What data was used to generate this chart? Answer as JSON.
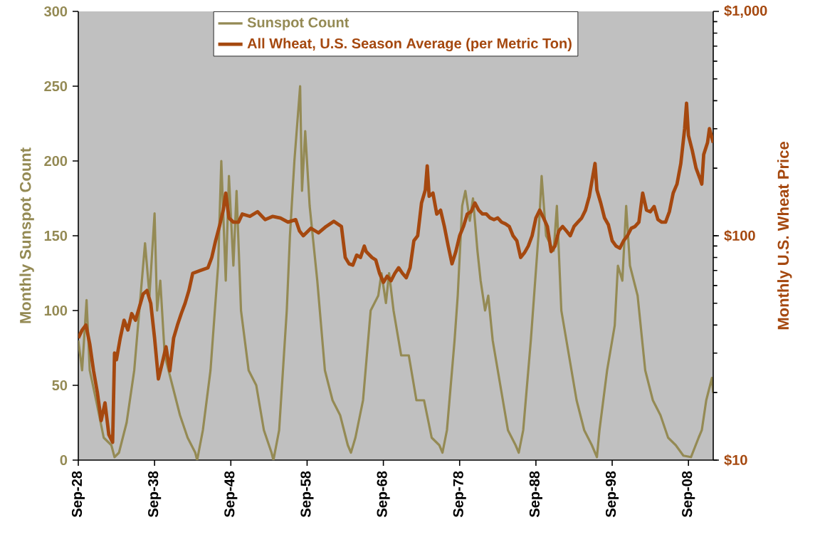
{
  "chart_data": {
    "type": "line",
    "ylabel": "Monthly Sunspot Count",
    "y2label": "Monthly U.S. Wheat Price",
    "xlim": [
      "1928-09",
      "2011-12"
    ],
    "xticks": [
      {
        "value": "1928-09",
        "label": "Sep-28"
      },
      {
        "value": "1938-09",
        "label": "Sep-38"
      },
      {
        "value": "1948-09",
        "label": "Sep-48"
      },
      {
        "value": "1958-09",
        "label": "Sep-58"
      },
      {
        "value": "1968-09",
        "label": "Sep-68"
      },
      {
        "value": "1978-09",
        "label": "Sep-78"
      },
      {
        "value": "1988-09",
        "label": "Sep-88"
      },
      {
        "value": "1998-09",
        "label": "Sep-98"
      },
      {
        "value": "2008-09",
        "label": "Sep-08"
      }
    ],
    "ylim": [
      0,
      300
    ],
    "yticks": [
      0,
      50,
      100,
      150,
      200,
      250,
      300
    ],
    "y2lim": [
      10,
      1000
    ],
    "y2ticks": [
      {
        "value": 10,
        "label": "$10"
      },
      {
        "value": 100,
        "label": "$100"
      },
      {
        "value": 1000,
        "label": "$1,000"
      }
    ],
    "log": "y2",
    "legend": "top",
    "series": [
      {
        "name": "Sunspot Count",
        "color": "#948a54",
        "x": [
          "1928-09",
          "1929-03",
          "1929-10",
          "1930-03",
          "1931-01",
          "1932-01",
          "1933-01",
          "1933-06",
          "1934-01",
          "1935-01",
          "1936-01",
          "1937-01",
          "1937-06",
          "1938-01",
          "1938-09",
          "1939-01",
          "1939-06",
          "1940-01",
          "1941-01",
          "1942-01",
          "1943-01",
          "1944-01",
          "1944-04",
          "1945-01",
          "1946-01",
          "1947-01",
          "1947-06",
          "1948-01",
          "1948-06",
          "1949-01",
          "1949-06",
          "1950-01",
          "1951-01",
          "1952-01",
          "1953-01",
          "1954-01",
          "1954-04",
          "1955-01",
          "1956-01",
          "1956-06",
          "1957-01",
          "1957-10",
          "1958-01",
          "1958-06",
          "1959-01",
          "1960-01",
          "1961-01",
          "1962-01",
          "1963-01",
          "1964-01",
          "1964-06",
          "1965-01",
          "1966-01",
          "1967-01",
          "1968-01",
          "1968-06",
          "1969-01",
          "1969-06",
          "1970-01",
          "1971-01",
          "1972-01",
          "1973-01",
          "1974-01",
          "1975-01",
          "1976-01",
          "1976-06",
          "1977-01",
          "1978-01",
          "1978-06",
          "1979-01",
          "1979-06",
          "1980-01",
          "1980-06",
          "1981-01",
          "1981-06",
          "1982-01",
          "1982-06",
          "1983-01",
          "1984-01",
          "1985-01",
          "1986-01",
          "1986-06",
          "1987-01",
          "1988-01",
          "1989-01",
          "1989-06",
          "1990-01",
          "1991-01",
          "1991-06",
          "1992-01",
          "1993-01",
          "1994-01",
          "1995-01",
          "1996-01",
          "1996-09",
          "1997-01",
          "1998-01",
          "1999-01",
          "1999-06",
          "2000-01",
          "2000-07",
          "2001-01",
          "2002-01",
          "2003-01",
          "2004-01",
          "2005-01",
          "2006-01",
          "2007-01",
          "2008-01",
          "2009-01",
          "2010-01",
          "2010-06",
          "2011-01",
          "2011-10",
          "2011-12"
        ],
        "values": [
          80,
          60,
          107,
          60,
          40,
          15,
          10,
          2,
          5,
          25,
          60,
          120,
          145,
          110,
          165,
          100,
          120,
          70,
          50,
          30,
          15,
          5,
          0,
          20,
          60,
          130,
          200,
          120,
          190,
          130,
          180,
          100,
          60,
          50,
          20,
          5,
          0,
          20,
          100,
          150,
          200,
          250,
          180,
          220,
          170,
          120,
          60,
          40,
          30,
          10,
          5,
          15,
          40,
          100,
          110,
          125,
          105,
          125,
          100,
          70,
          70,
          40,
          40,
          15,
          10,
          5,
          20,
          80,
          110,
          170,
          180,
          160,
          175,
          140,
          120,
          100,
          110,
          80,
          50,
          20,
          10,
          5,
          20,
          80,
          150,
          190,
          150,
          140,
          170,
          100,
          70,
          40,
          20,
          10,
          2,
          20,
          60,
          90,
          130,
          120,
          170,
          130,
          110,
          60,
          40,
          30,
          15,
          10,
          3,
          2,
          15,
          20,
          40,
          55,
          45
        ]
      },
      {
        "name": "All Wheat, U.S. Season Average  (per Metric Ton)",
        "color": "#a5480f",
        "axis": "y2",
        "x": [
          "1928-09",
          "1929-03",
          "1929-09",
          "1930-03",
          "1930-09",
          "1931-03",
          "1931-09",
          "1932-03",
          "1932-09",
          "1933-03",
          "1933-06",
          "1933-09",
          "1934-03",
          "1934-09",
          "1935-03",
          "1935-09",
          "1936-03",
          "1936-09",
          "1937-03",
          "1937-09",
          "1938-03",
          "1938-09",
          "1939-03",
          "1939-09",
          "1940-03",
          "1940-09",
          "1941-03",
          "1941-09",
          "1942-03",
          "1942-09",
          "1943-03",
          "1943-09",
          "1944-09",
          "1945-09",
          "1946-03",
          "1946-09",
          "1947-03",
          "1947-09",
          "1948-01",
          "1948-06",
          "1949-01",
          "1949-09",
          "1950-03",
          "1951-03",
          "1952-03",
          "1953-03",
          "1954-03",
          "1955-03",
          "1956-03",
          "1957-03",
          "1957-09",
          "1958-03",
          "1959-03",
          "1960-03",
          "1961-03",
          "1962-03",
          "1963-03",
          "1963-09",
          "1964-03",
          "1964-09",
          "1965-03",
          "1965-09",
          "1966-03",
          "1966-06",
          "1967-03",
          "1967-09",
          "1968-03",
          "1968-09",
          "1969-03",
          "1969-09",
          "1970-03",
          "1970-09",
          "1971-03",
          "1971-09",
          "1972-03",
          "1972-09",
          "1973-03",
          "1973-09",
          "1974-03",
          "1974-06",
          "1974-09",
          "1975-03",
          "1975-09",
          "1976-03",
          "1976-09",
          "1977-03",
          "1977-09",
          "1978-03",
          "1978-09",
          "1979-03",
          "1979-09",
          "1980-03",
          "1980-09",
          "1981-03",
          "1981-09",
          "1982-03",
          "1982-09",
          "1983-03",
          "1983-09",
          "1984-03",
          "1984-09",
          "1985-03",
          "1985-09",
          "1986-03",
          "1986-09",
          "1987-03",
          "1987-09",
          "1988-03",
          "1988-09",
          "1989-03",
          "1989-09",
          "1990-03",
          "1990-09",
          "1991-03",
          "1991-09",
          "1992-03",
          "1992-09",
          "1993-03",
          "1993-09",
          "1994-03",
          "1994-09",
          "1995-03",
          "1995-09",
          "1996-06",
          "1996-09",
          "1997-03",
          "1997-09",
          "1998-03",
          "1998-09",
          "1999-03",
          "1999-09",
          "2000-03",
          "2000-09",
          "2001-03",
          "2001-09",
          "2002-03",
          "2002-09",
          "2003-03",
          "2003-09",
          "2004-03",
          "2004-09",
          "2005-03",
          "2005-09",
          "2006-03",
          "2006-09",
          "2007-03",
          "2007-09",
          "2008-03",
          "2008-06",
          "2008-09",
          "2009-03",
          "2009-09",
          "2010-03",
          "2010-06",
          "2010-09",
          "2011-03",
          "2011-06",
          "2011-12"
        ],
        "values": [
          35,
          38,
          40,
          33,
          25,
          20,
          15,
          18,
          13,
          12,
          30,
          28,
          35,
          42,
          38,
          45,
          42,
          48,
          55,
          57,
          50,
          35,
          23,
          27,
          32,
          25,
          35,
          40,
          45,
          50,
          57,
          68,
          70,
          72,
          80,
          95,
          110,
          130,
          155,
          120,
          115,
          115,
          125,
          122,
          128,
          118,
          122,
          120,
          115,
          118,
          105,
          100,
          108,
          103,
          110,
          116,
          110,
          80,
          75,
          74,
          82,
          80,
          90,
          85,
          80,
          78,
          68,
          62,
          66,
          63,
          68,
          72,
          68,
          65,
          72,
          95,
          100,
          140,
          160,
          205,
          150,
          155,
          125,
          130,
          110,
          90,
          75,
          85,
          100,
          110,
          125,
          128,
          140,
          130,
          125,
          125,
          120,
          118,
          120,
          115,
          113,
          110,
          100,
          95,
          80,
          84,
          90,
          100,
          120,
          130,
          120,
          110,
          85,
          90,
          105,
          110,
          105,
          100,
          110,
          115,
          120,
          130,
          150,
          210,
          160,
          140,
          120,
          112,
          95,
          90,
          88,
          95,
          100,
          108,
          110,
          115,
          155,
          130,
          128,
          135,
          118,
          115,
          115,
          128,
          155,
          170,
          210,
          300,
          390,
          280,
          240,
          200,
          180,
          170,
          230,
          260,
          300,
          260
        ]
      }
    ]
  }
}
